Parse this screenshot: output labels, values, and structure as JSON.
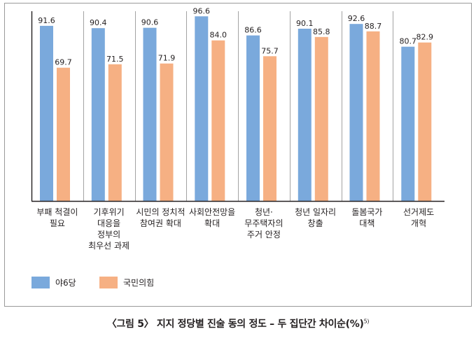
{
  "chart_data": {
    "type": "bar",
    "title": "〈그림 5〉 지지 정당별 진술 동의 정도 – 두 집단간 차이순(%)",
    "title_footnote": "5)",
    "categories": [
      [
        "부패 척결이",
        "필요"
      ],
      [
        "기후위기",
        "대응을",
        "정부의",
        "최우선 과제"
      ],
      [
        "시민의 정치적",
        "참여권 확대"
      ],
      [
        "사회안전망을",
        "확대"
      ],
      [
        "청년·",
        "무주택자의",
        "주거 안정"
      ],
      [
        "청년 일자리",
        "창출"
      ],
      [
        "돌봄국가",
        "대책"
      ],
      [
        "선거제도",
        "개혁"
      ]
    ],
    "series": [
      {
        "name": "야6당",
        "color": "#7aa9dc",
        "values": [
          91.6,
          90.4,
          90.6,
          96.6,
          86.6,
          90.1,
          92.6,
          80.7
        ]
      },
      {
        "name": "국민의힘",
        "color": "#f6b083",
        "values": [
          69.7,
          71.5,
          71.9,
          84.0,
          75.7,
          85.8,
          88.7,
          82.9
        ]
      }
    ],
    "value_labels": [
      [
        "91.6",
        "90.4",
        "90.6",
        "96.6",
        "86.6",
        "90.1",
        "92.6",
        "80.7"
      ],
      [
        "69.7",
        "71.5",
        "71.9",
        "84.0",
        "75.7",
        "85.8",
        "88.7",
        "82.9"
      ]
    ],
    "ylim": [
      0,
      100
    ],
    "xlabel": "",
    "ylabel": "",
    "grid": false,
    "legend_position": "bottom-left"
  }
}
